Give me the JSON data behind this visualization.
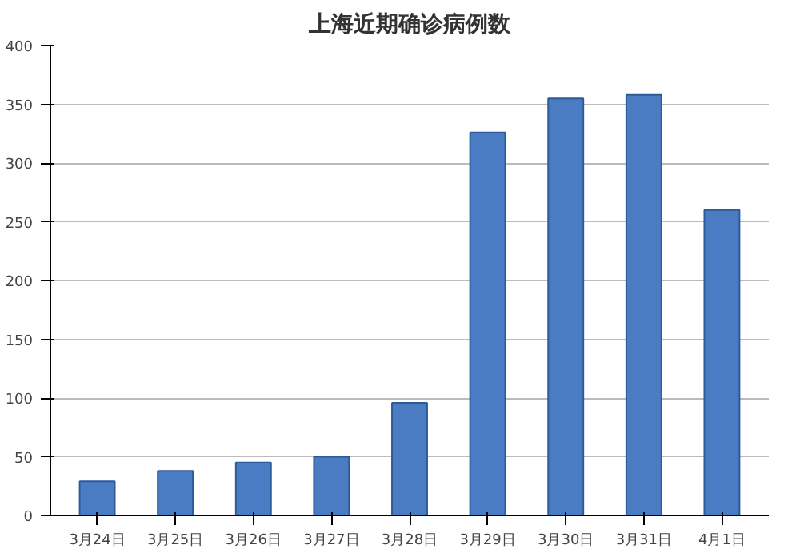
{
  "chart_data": {
    "type": "bar",
    "title": "上海近期确诊病例数",
    "categories": [
      "3月24日",
      "3月25日",
      "3月26日",
      "3月27日",
      "3月28日",
      "3月29日",
      "3月30日",
      "3月31日",
      "4月1日"
    ],
    "values": [
      29,
      38,
      45,
      50,
      96,
      326,
      355,
      358,
      260
    ],
    "color": "#4a7cc4",
    "ylim": [
      0,
      400
    ],
    "yticks": [
      0,
      50,
      100,
      150,
      200,
      250,
      300,
      350,
      400
    ],
    "grid": "y"
  }
}
